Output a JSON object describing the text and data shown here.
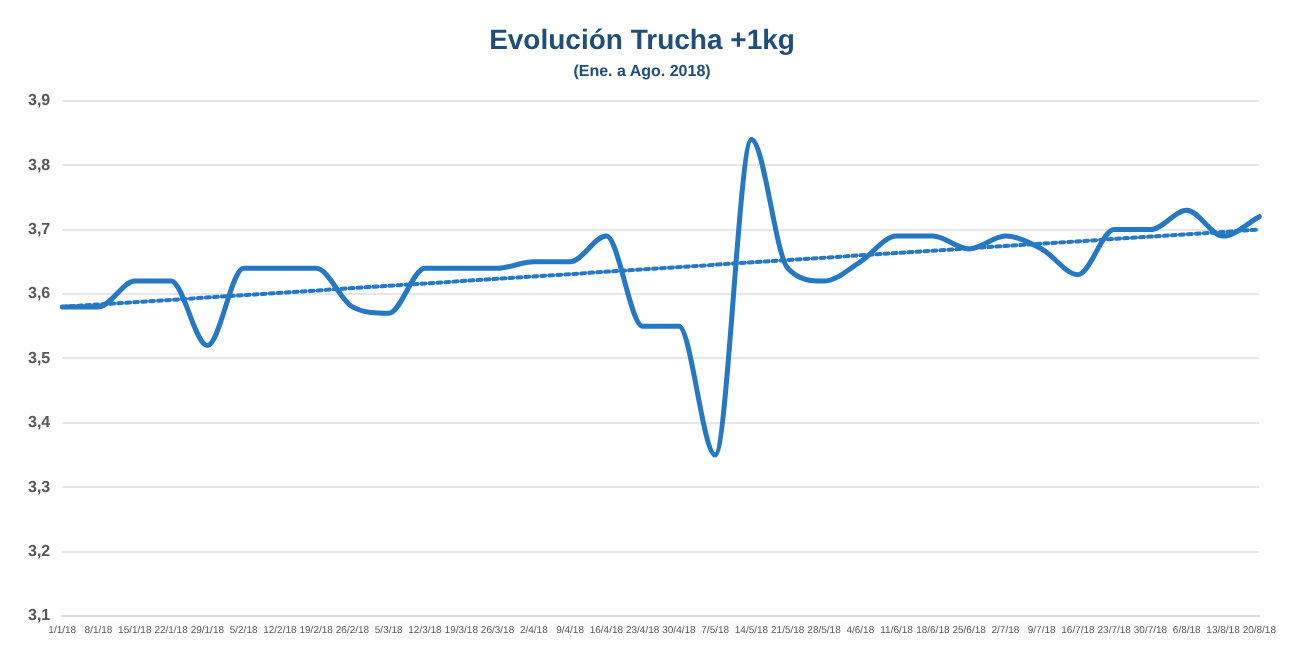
{
  "chart_data": {
    "type": "line",
    "title": "Evolución Trucha +1kg",
    "subtitle": "(Ene. a Ago. 2018)",
    "categories": [
      "1/1/18",
      "8/1/18",
      "15/1/18",
      "22/1/18",
      "29/1/18",
      "5/2/18",
      "12/2/18",
      "19/2/18",
      "26/2/18",
      "5/3/18",
      "12/3/18",
      "19/3/18",
      "26/3/18",
      "2/4/18",
      "9/4/18",
      "16/4/18",
      "23/4/18",
      "30/4/18",
      "7/5/18",
      "14/5/18",
      "21/5/18",
      "28/5/18",
      "4/6/18",
      "11/6/18",
      "18/6/18",
      "25/6/18",
      "2/7/18",
      "9/7/18",
      "16/7/18",
      "23/7/18",
      "30/7/18",
      "6/8/18",
      "13/8/18",
      "20/8/18"
    ],
    "series": [
      {
        "color": "#2478c4",
        "line_style": "solid",
        "values": [
          3.58,
          3.58,
          3.62,
          3.62,
          3.52,
          3.64,
          3.64,
          3.64,
          3.58,
          3.57,
          3.64,
          3.64,
          3.64,
          3.65,
          3.65,
          3.69,
          3.55,
          3.55,
          3.35,
          3.84,
          3.64,
          3.62,
          3.65,
          3.69,
          3.69,
          3.67,
          3.69,
          3.67,
          3.63,
          3.7,
          3.7,
          3.73,
          3.69,
          3.72
        ]
      },
      {
        "type": "line",
        "color": "#2478c4",
        "line_style": "dotted",
        "x": [
          "1/1/18",
          "20/8/18"
        ],
        "values": [
          3.58,
          3.7
        ]
      }
    ],
    "ylim": [
      3.1,
      3.9
    ],
    "yticks": [
      {
        "value": 3.1,
        "label": "3,1"
      },
      {
        "value": 3.2,
        "label": "3,2"
      },
      {
        "value": 3.3,
        "label": "3,3"
      },
      {
        "value": 3.4,
        "label": "3,4"
      },
      {
        "value": 3.5,
        "label": "3,5"
      },
      {
        "value": 3.6,
        "label": "3,6"
      },
      {
        "value": 3.7,
        "label": "3,7"
      },
      {
        "value": 3.8,
        "label": "3,8"
      },
      {
        "value": 3.9,
        "label": "3,9"
      }
    ],
    "grid": "y",
    "legend": false,
    "marker": "none"
  }
}
